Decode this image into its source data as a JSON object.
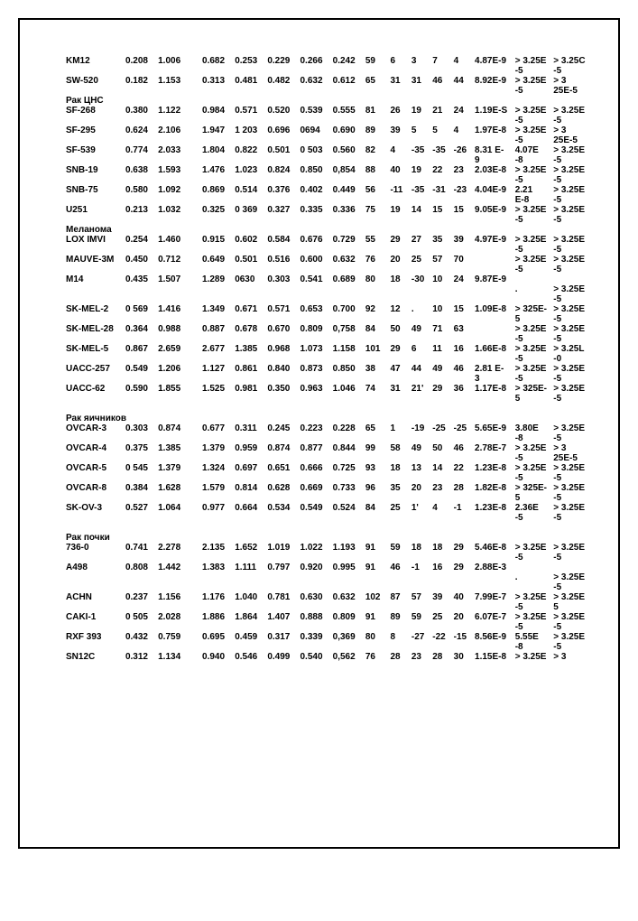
{
  "table": {
    "font_size": 10,
    "text_color": "#000000",
    "background_color": "#ffffff",
    "border_color": "#000000",
    "col_count": 16,
    "rows": [
      {
        "type": "data",
        "cells": [
          "KM12",
          "0.208",
          "1.006",
          "",
          "0.682",
          "0.253",
          "0.229",
          "0.266",
          "0.242",
          "59",
          "6",
          "3",
          "7",
          "4",
          "4.87E-9",
          "> 3.25E",
          "> 3.25C"
        ]
      },
      {
        "type": "sub",
        "cells": [
          "",
          "",
          "",
          "",
          "",
          "",
          "",
          "",
          "",
          "",
          "",
          "",
          "",
          "",
          "",
          "-5",
          "-5"
        ]
      },
      {
        "type": "data",
        "cells": [
          "SW-520",
          "0.182",
          "1.153",
          "",
          "0.313",
          "0.481",
          "0.482",
          "0.632",
          "0.612",
          "65",
          "31",
          "31",
          "46",
          "44",
          "8.92E-9",
          "> 3.25E",
          ">    3"
        ]
      },
      {
        "type": "sub",
        "cells": [
          "",
          "",
          "",
          "",
          "",
          "",
          "",
          "",
          "",
          "",
          "",
          "",
          "",
          "",
          "",
          "-5",
          "25E-5"
        ]
      },
      {
        "type": "label",
        "text": "Рак ЦНС"
      },
      {
        "type": "data",
        "cells": [
          "SF-268",
          "0.380",
          "1.122",
          "",
          "0.984",
          "0.571",
          "0.520",
          "0.539",
          "0.555",
          "81",
          "26",
          "19",
          "21",
          "24",
          "1.19E-S",
          "> 3.25E",
          "> 3.25E"
        ]
      },
      {
        "type": "sub",
        "cells": [
          "",
          "",
          "",
          "",
          "",
          "",
          "",
          "",
          "",
          "",
          "",
          "",
          "",
          "",
          "",
          "-5",
          "-5"
        ]
      },
      {
        "type": "data",
        "cells": [
          "SF-295",
          "0.624",
          "2.106",
          "",
          "1.947",
          "1 203",
          "0.696",
          "0694",
          "0.690",
          "89",
          "39",
          "5",
          "5",
          "4",
          "1.97E-8",
          "> 3.25E",
          ">    3"
        ]
      },
      {
        "type": "sub",
        "cells": [
          "",
          "",
          "",
          "",
          "",
          "",
          "",
          "",
          "",
          "",
          "",
          "",
          "",
          "",
          "",
          "-5",
          "25E-5"
        ]
      },
      {
        "type": "data",
        "cells": [
          "SF-539",
          "0.774",
          "2.033",
          "",
          "1.804",
          "0.822",
          "0.501",
          "0 503",
          "0.560",
          "82",
          "4",
          "-35",
          "-35",
          "-26",
          "8.31 E-",
          "4.07E",
          "> 3.25E"
        ]
      },
      {
        "type": "sub",
        "cells": [
          "",
          "",
          "",
          "",
          "",
          "",
          "",
          "",
          "",
          "",
          "",
          "",
          "",
          "",
          "9",
          "-8",
          "-5"
        ]
      },
      {
        "type": "data",
        "cells": [
          "SNB-19",
          "0.638",
          "1.593",
          "",
          "1.476",
          "1.023",
          "0.824",
          "0.850",
          "0,854",
          "88",
          "40",
          "19",
          "22",
          "23",
          "2.03E-8",
          "> 3.25E",
          "> 3.25E"
        ]
      },
      {
        "type": "sub",
        "cells": [
          "",
          "",
          "",
          "",
          "",
          "",
          "",
          "",
          "",
          "",
          "",
          "",
          "",
          "",
          "",
          "-5",
          "-5"
        ]
      },
      {
        "type": "data",
        "cells": [
          "SNB-75",
          "0.580",
          "1.092",
          "",
          "0.869",
          "0.514",
          "0.376",
          "0.402",
          "0.449",
          "56",
          "-11",
          "-35",
          "-31",
          "-23",
          "4.04E-9",
          "2.21",
          "> 3.25E"
        ]
      },
      {
        "type": "sub",
        "cells": [
          "",
          "",
          "",
          "",
          "",
          "",
          "",
          "",
          "",
          "",
          "",
          "",
          "",
          "",
          "",
          "E-8",
          "-5"
        ]
      },
      {
        "type": "data",
        "cells": [
          "U251",
          "0.213",
          "1.032",
          "",
          "0.325",
          "0 369",
          "0.327",
          "0.335",
          "0.336",
          "75",
          "19",
          "14",
          "15",
          "15",
          "9.05E-9",
          "> 3.25E",
          "> 3.25E"
        ]
      },
      {
        "type": "sub",
        "cells": [
          "",
          "",
          "",
          "",
          "",
          "",
          "",
          "",
          "",
          "",
          "",
          "",
          "",
          "",
          "",
          "-5",
          "-5"
        ]
      },
      {
        "type": "label",
        "text": "Меланома"
      },
      {
        "type": "data",
        "cells": [
          "LOX IMVI",
          "0.254",
          "1.460",
          "",
          "0.915",
          "0.602",
          "0.584",
          "0.676",
          "0.729",
          "55",
          "29",
          "27",
          "35",
          "39",
          "4.97E-9",
          "> 3.25E",
          "> 3.25E"
        ]
      },
      {
        "type": "sub",
        "cells": [
          "",
          "",
          "",
          "",
          "",
          "",
          "",
          "",
          "",
          "",
          "",
          "",
          "",
          "",
          "",
          "-5",
          "-5"
        ]
      },
      {
        "type": "data",
        "cells": [
          "MAUVE-3M",
          "0.450",
          "0.712",
          "",
          "0.649",
          "0.501",
          "0.516",
          "0.600",
          "0.632",
          "76",
          "20",
          "25",
          "57",
          "70",
          "",
          "> 3.25E",
          "> 3.25E"
        ]
      },
      {
        "type": "sub",
        "cells": [
          "",
          "",
          "",
          "",
          "",
          "",
          "",
          "",
          "",
          "",
          "",
          "",
          "",
          "",
          "",
          "-5",
          "-5"
        ]
      },
      {
        "type": "data",
        "cells": [
          "M14",
          "0.435",
          "1.507",
          "",
          "1.289",
          "0630",
          "0.303",
          "0.541",
          "0.689",
          "80",
          "18",
          "-30",
          "10",
          "24",
          "9.87E-9",
          "",
          ""
        ]
      },
      {
        "type": "sub",
        "cells": [
          "",
          "",
          "",
          "",
          "",
          "",
          "",
          "",
          "",
          "",
          "",
          "",
          "",
          "",
          "",
          ".",
          "> 3.25E"
        ]
      },
      {
        "type": "sub",
        "cells": [
          "",
          "",
          "",
          "",
          "",
          "",
          "",
          "",
          "",
          "",
          "",
          "",
          "",
          "",
          "",
          "",
          "-5"
        ]
      },
      {
        "type": "data",
        "cells": [
          "SK-MEL-2",
          "0 569",
          "1.416",
          "",
          "1.349",
          "0.671",
          "0.571",
          "0.653",
          "0.700",
          "92",
          "12",
          ".",
          "10",
          "15",
          "1.09E-8",
          "> 325E-",
          "> 3.25E"
        ]
      },
      {
        "type": "sub",
        "cells": [
          "",
          "",
          "",
          "",
          "",
          "",
          "",
          "",
          "",
          "",
          "",
          "",
          "",
          "",
          "",
          "5",
          "-5"
        ]
      },
      {
        "type": "data",
        "cells": [
          "SK-MEL-28",
          "0.364",
          "0.988",
          "",
          "0.887",
          "0.678",
          "0.670",
          "0.809",
          "0,758",
          "84",
          "50",
          "49",
          "71",
          "63",
          "",
          "> 3.25E",
          "> 3.25E"
        ]
      },
      {
        "type": "sub",
        "cells": [
          "",
          "",
          "",
          "",
          "",
          "",
          "",
          "",
          "",
          "",
          "",
          "",
          "",
          "",
          "",
          "-5",
          "-5"
        ]
      },
      {
        "type": "data",
        "cells": [
          "SK-MEL-5",
          "0.867",
          "2.659",
          "",
          "2.677",
          "1.385",
          "0.968",
          "1.073",
          "1.158",
          "101",
          "29",
          "6",
          "11",
          "16",
          "1.66E-8",
          "> 3.25E",
          "> 3.25L"
        ]
      },
      {
        "type": "sub",
        "cells": [
          "",
          "",
          "",
          "",
          "",
          "",
          "",
          "",
          "",
          "",
          "",
          "",
          "",
          "",
          "",
          "-5",
          "-0"
        ]
      },
      {
        "type": "data",
        "cells": [
          "UACC-257",
          "0.549",
          "1.206",
          "",
          "1.127",
          "0.861",
          "0.840",
          "0.873",
          "0.850",
          "38",
          "47",
          "44",
          "49",
          "46",
          "2.81 E-",
          "> 3.25E",
          "> 3.25E"
        ]
      },
      {
        "type": "sub",
        "cells": [
          "",
          "",
          "",
          "",
          "",
          "",
          "",
          "",
          "",
          "",
          "",
          "",
          "",
          "",
          "3",
          "-5",
          "-5"
        ]
      },
      {
        "type": "data",
        "cells": [
          "UACC-62",
          "0.590",
          "1.855",
          "",
          "1.525",
          "0.981",
          "0.350",
          "0.963",
          "1.046",
          "74",
          "31",
          "21'",
          "29",
          "36",
          "1.17E-8",
          "> 325E-",
          "> 3.25E"
        ]
      },
      {
        "type": "sub",
        "cells": [
          "",
          "",
          "",
          "",
          "",
          "",
          "",
          "",
          "",
          "",
          "",
          "",
          "",
          "",
          "",
          "5",
          "-5"
        ]
      },
      {
        "type": "blank"
      },
      {
        "type": "label",
        "text": "Рак яичников"
      },
      {
        "type": "data",
        "cells": [
          "OVCAR-3",
          "0.303",
          "0.874",
          "",
          "0.677",
          "0.311",
          "0.245",
          "0.223",
          "0.228",
          "65",
          "1",
          "-19",
          "-25",
          "-25",
          "5.65E-9",
          "3.80E",
          "> 3.25E"
        ]
      },
      {
        "type": "sub",
        "cells": [
          "",
          "",
          "",
          "",
          "",
          "",
          "",
          "",
          "",
          "",
          "",
          "",
          "",
          "",
          "",
          "-8",
          "-5"
        ]
      },
      {
        "type": "data",
        "cells": [
          "OVCAR-4",
          "0.375",
          "1.385",
          "",
          "1.379",
          "0.959",
          "0.874",
          "0.877",
          "0.844",
          "99",
          "58",
          "49",
          "50",
          "46",
          "2.78E-7",
          "> 3.25E",
          ">    3"
        ]
      },
      {
        "type": "sub",
        "cells": [
          "",
          "",
          "",
          "",
          "",
          "",
          "",
          "",
          "",
          "",
          "",
          "",
          "",
          "",
          "",
          "-5",
          "25E-5"
        ]
      },
      {
        "type": "data",
        "cells": [
          "OVCAR-5",
          "0 545",
          "1.379",
          "",
          "1.324",
          "0.697",
          "0.651",
          "0.666",
          "0.725",
          "93",
          "18",
          "13",
          "14",
          "22",
          "1.23E-8",
          "> 3.25E",
          "> 3.25E"
        ]
      },
      {
        "type": "sub",
        "cells": [
          "",
          "",
          "",
          "",
          "",
          "",
          "",
          "",
          "",
          "",
          "",
          "",
          "",
          "",
          "",
          "-5",
          "-5"
        ]
      },
      {
        "type": "data",
        "cells": [
          "OVCAR-8",
          "0.384",
          "1.628",
          "",
          "1.579",
          "0.814",
          "0.628",
          "0.669",
          "0.733",
          "96",
          "35",
          "20",
          "23",
          "28",
          "1.82E-8",
          "> 325E-",
          "> 3.25E"
        ]
      },
      {
        "type": "sub",
        "cells": [
          "",
          "",
          "",
          "",
          "",
          "",
          "",
          "",
          "",
          "",
          "",
          "",
          "",
          "",
          "",
          "5",
          "-5"
        ]
      },
      {
        "type": "data",
        "cells": [
          "SK-OV-3",
          "0.527",
          "1.064",
          "",
          "0.977",
          "0.664",
          "0.534",
          "0.549",
          "0.524",
          "84",
          "25",
          "1'",
          "4",
          "-1",
          "1.23E-8",
          "2.36E",
          "> 3.25E"
        ]
      },
      {
        "type": "sub",
        "cells": [
          "",
          "",
          "",
          "",
          "",
          "",
          "",
          "",
          "",
          "",
          "",
          "",
          "",
          "",
          "",
          "-5",
          "-5"
        ]
      },
      {
        "type": "blank"
      },
      {
        "type": "label",
        "text": "Рак почки"
      },
      {
        "type": "data",
        "cells": [
          "736-0",
          "0.741",
          "2.278",
          "",
          "2.135",
          "1.652",
          "1.019",
          "1.022",
          "1.193",
          "91",
          "59",
          "18",
          "18",
          "29",
          "5.46E-8",
          "> 3.25E",
          "> 3.25E"
        ]
      },
      {
        "type": "sub",
        "cells": [
          "",
          "",
          "",
          "",
          "",
          "",
          "",
          "",
          "",
          "",
          "",
          "",
          "",
          "",
          "",
          "-5",
          "-5"
        ]
      },
      {
        "type": "data",
        "cells": [
          "A498",
          "0.808",
          "1.442",
          "",
          "1.383",
          "1.111",
          "0.797",
          "0.920",
          "0.995",
          "91",
          "46",
          "-1",
          "16",
          "29",
          "2.88E-3",
          "",
          ""
        ]
      },
      {
        "type": "sub",
        "cells": [
          "",
          "",
          "",
          "",
          "",
          "",
          "",
          "",
          "",
          "",
          "",
          "",
          "",
          "",
          "",
          ".",
          "> 3.25E"
        ]
      },
      {
        "type": "sub",
        "cells": [
          "",
          "",
          "",
          "",
          "",
          "",
          "",
          "",
          "",
          "",
          "",
          "",
          "",
          "",
          "",
          "",
          "-5"
        ]
      },
      {
        "type": "data",
        "cells": [
          "ACHN",
          "0.237",
          "1.156",
          "",
          "1.176",
          "1.040",
          "0.781",
          "0.630",
          "0.632",
          "102",
          "87",
          "57",
          "39",
          "40",
          "7.99E-7",
          "> 3.25E",
          "> 3.25E"
        ]
      },
      {
        "type": "sub",
        "cells": [
          "",
          "",
          "",
          "",
          "",
          "",
          "",
          "",
          "",
          "",
          "",
          "",
          "",
          "",
          "",
          "-5",
          "5"
        ]
      },
      {
        "type": "data",
        "cells": [
          "CAKI-1",
          "0 505",
          "2.028",
          "",
          "1.886",
          "1.864",
          "1.407",
          "0.888",
          "0.809",
          "91",
          "89",
          "59",
          "25",
          "20",
          "6.07E-7",
          "> 3.25E",
          "> 3.25E"
        ]
      },
      {
        "type": "sub",
        "cells": [
          "",
          "",
          "",
          "",
          "",
          "",
          "",
          "",
          "",
          "",
          "",
          "",
          "",
          "",
          "",
          "-5",
          "-5"
        ]
      },
      {
        "type": "data",
        "cells": [
          "RXF 393",
          "0.432",
          "0.759",
          "",
          "0.695",
          "0.459",
          "0.317",
          "0.339",
          "0,369",
          "80",
          "8",
          "-27",
          "-22",
          "-15",
          "8.56E-9",
          "5.55E",
          "> 3.25E"
        ]
      },
      {
        "type": "sub",
        "cells": [
          "",
          "",
          "",
          "",
          "",
          "",
          "",
          "",
          "",
          "",
          "",
          "",
          "",
          "",
          "",
          "-8",
          "-5"
        ]
      },
      {
        "type": "data",
        "cells": [
          "SN12C",
          "0.312",
          "1.134",
          "",
          "0.940",
          "0.546",
          "0.499",
          "0.540",
          "0,562",
          "76",
          "28",
          "23",
          "28",
          "30",
          "1.15E-8",
          "> 3.25E",
          ">    3"
        ]
      }
    ]
  }
}
